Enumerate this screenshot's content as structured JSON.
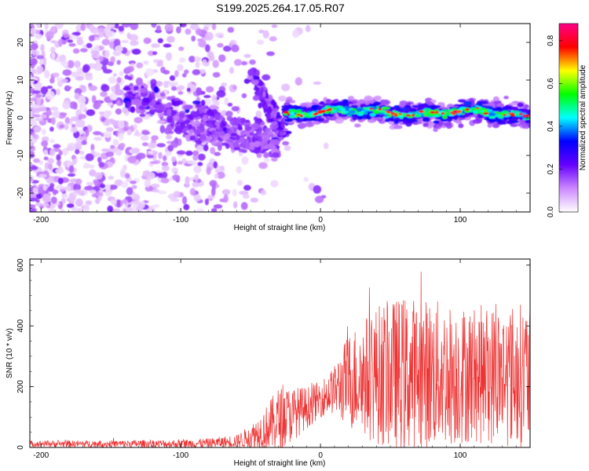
{
  "chart_data": [
    {
      "type": "heatmap",
      "title": "S199.2025.264.17.05.R07",
      "xlabel": "Height of straight line (km)",
      "ylabel": "Frequency (Hz)",
      "xlim": [
        -208,
        150
      ],
      "ylim": [
        -25,
        25
      ],
      "x_ticks": [
        -200,
        -100,
        0,
        100
      ],
      "y_ticks": [
        -20,
        -10,
        0,
        10,
        20
      ],
      "colorbar": {
        "label": "Normalized spectral amplitude",
        "range": [
          0.0,
          0.88
        ],
        "ticks": [
          "0.0",
          "0.2",
          "0.4",
          "0.6",
          "0.8"
        ],
        "colors": [
          "#ffffff",
          "#cc88ff",
          "#6600ff",
          "#0000ff",
          "#00ffff",
          "#00ff00",
          "#ffff00",
          "#ff0000",
          "#ff0088"
        ]
      },
      "features": [
        {
          "name": "noise",
          "x_range": [
            -208,
            -55
          ],
          "freq_range": [
            -25,
            25
          ],
          "amplitude": 0.08
        },
        {
          "name": "diagonal-band",
          "x_start": -140,
          "x_end": -30,
          "freq_start": 6,
          "freq_end": -6,
          "amplitude": 0.2
        },
        {
          "name": "steep-band",
          "x_start": -50,
          "x_end": -25,
          "freq_start": 12,
          "freq_end": -5,
          "amplitude": 0.25
        },
        {
          "name": "horizontal-band",
          "x_start": -25,
          "x_end": 150,
          "freq_center": 1.5,
          "amplitude": 0.55
        }
      ]
    },
    {
      "type": "line",
      "xlabel": "Height of straight line (km)",
      "ylabel": "SNR (10 * v/v)",
      "xlim": [
        -208,
        150
      ],
      "ylim": [
        0,
        620
      ],
      "x_ticks": [
        -200,
        -100,
        0,
        100
      ],
      "y_ticks": [
        0,
        200,
        400,
        600
      ],
      "series": [
        {
          "name": "SNR",
          "color": "#ee3333",
          "envelope": {
            "x": [
              -208,
              -150,
              -100,
              -80,
              -60,
              -50,
              -40,
              -30,
              -20,
              -10,
              0,
              10,
              20,
              40,
              60,
              80,
              100,
              120,
              150
            ],
            "baseline": [
              12,
              12,
              12,
              14,
              20,
              35,
              60,
              90,
              110,
              130,
              160,
              190,
              220,
              240,
              240,
              240,
              240,
              240,
              240
            ],
            "amplitude": [
              10,
              12,
              14,
              16,
              22,
              40,
              70,
              110,
              90,
              70,
              60,
              80,
              160,
              230,
              260,
              250,
              230,
              230,
              240
            ]
          }
        }
      ]
    }
  ]
}
